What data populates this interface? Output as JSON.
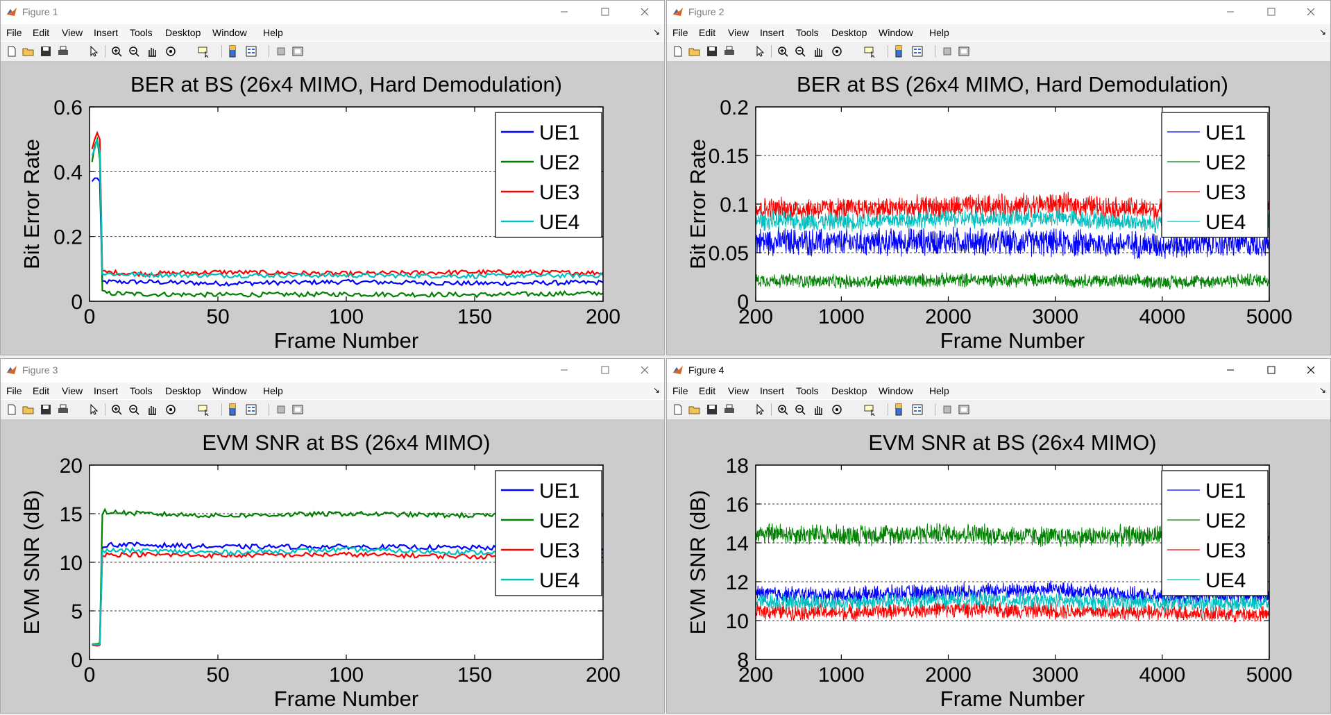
{
  "toolbar_icons": [
    "new-figure-icon",
    "open-file-icon",
    "save-icon",
    "print-icon",
    "pointer-arrow-icon",
    "zoom-in-icon",
    "zoom-out-icon",
    "pan-hand-icon",
    "rotate-3d-icon",
    "data-cursor-icon",
    "colorbar-icon",
    "legend-icon",
    "hide-plot-tools-icon",
    "show-plot-tools-icon"
  ],
  "menus": [
    "File",
    "Edit",
    "View",
    "Insert",
    "Tools",
    "Desktop",
    "Window",
    "Help"
  ],
  "colors": {
    "UE1": "#0000ff",
    "UE2": "#008000",
    "UE3": "#ff0000",
    "UE4": "#00bfbf",
    "figure_bg": "#cccccc"
  },
  "windows": [
    {
      "title": "Figure 1",
      "active": false,
      "chart_data": {
        "type": "line",
        "title": "BER at BS (26x4 MIMO, Hard Demodulation)",
        "xlabel": "Frame Number",
        "ylabel": "Bit Error Rate",
        "xlim": [
          0,
          200
        ],
        "ylim": [
          0,
          0.6
        ],
        "xticks": [
          0,
          50,
          100,
          150,
          200
        ],
        "xtick_labels": [
          "0",
          "50",
          "100",
          "150",
          "200"
        ],
        "yticks": [
          0,
          0.2,
          0.4,
          0.6
        ],
        "ytick_labels": [
          "0",
          "0.2",
          "0.4",
          "0.6"
        ],
        "grid": "horizontal dashed",
        "legend": "top-right",
        "series": [
          {
            "name": "UE1",
            "x": [
              1,
              2,
              3,
              4,
              5,
              6,
              20,
              50,
              100,
              150,
              200
            ],
            "y": [
              0.37,
              0.38,
              0.38,
              0.37,
              0.06,
              0.06,
              0.06,
              0.055,
              0.06,
              0.055,
              0.058
            ]
          },
          {
            "name": "UE2",
            "x": [
              1,
              2,
              3,
              4,
              5,
              6,
              20,
              50,
              100,
              150,
              200
            ],
            "y": [
              0.43,
              0.48,
              0.5,
              0.44,
              0.03,
              0.025,
              0.022,
              0.02,
              0.022,
              0.02,
              0.025
            ]
          },
          {
            "name": "UE3",
            "x": [
              1,
              2,
              3,
              4,
              5,
              6,
              20,
              50,
              100,
              150,
              200
            ],
            "y": [
              0.47,
              0.5,
              0.52,
              0.5,
              0.09,
              0.09,
              0.085,
              0.09,
              0.085,
              0.09,
              0.088
            ]
          },
          {
            "name": "UE4",
            "x": [
              1,
              2,
              3,
              4,
              5,
              6,
              20,
              50,
              100,
              150,
              200
            ],
            "y": [
              0.45,
              0.47,
              0.5,
              0.46,
              0.085,
              0.085,
              0.082,
              0.08,
              0.08,
              0.078,
              0.08
            ]
          }
        ]
      }
    },
    {
      "title": "Figure 2",
      "active": false,
      "chart_data": {
        "type": "line",
        "title": "BER at BS (26x4 MIMO, Hard Demodulation)",
        "xlabel": "Frame Number",
        "ylabel": "Bit Error Rate",
        "xlim": [
          200,
          5000
        ],
        "ylim": [
          0,
          0.2
        ],
        "xticks": [
          200,
          1000,
          2000,
          3000,
          4000,
          5000
        ],
        "xtick_labels": [
          "200",
          "1000",
          "2000",
          "3000",
          "4000",
          "5000"
        ],
        "yticks": [
          0,
          0.05,
          0.1,
          0.15,
          0.2
        ],
        "ytick_labels": [
          "0",
          "0.05",
          "0.1",
          "0.15",
          "0.2"
        ],
        "grid": "horizontal dashed",
        "legend": "top-right",
        "series": [
          {
            "name": "UE1",
            "mean": 0.062,
            "spread": 0.012,
            "x": [
              200,
              1000,
              2000,
              3000,
              4000,
              5000
            ],
            "y": [
              0.062,
              0.06,
              0.062,
              0.06,
              0.058,
              0.06
            ]
          },
          {
            "name": "UE2",
            "mean": 0.022,
            "spread": 0.006,
            "x": [
              200,
              1000,
              2000,
              3000,
              4000,
              5000
            ],
            "y": [
              0.022,
              0.02,
              0.022,
              0.022,
              0.02,
              0.022
            ]
          },
          {
            "name": "UE3",
            "mean": 0.095,
            "spread": 0.01,
            "x": [
              200,
              1000,
              2000,
              3000,
              4000,
              5000
            ],
            "y": [
              0.095,
              0.095,
              0.097,
              0.1,
              0.093,
              0.095
            ]
          },
          {
            "name": "UE4",
            "mean": 0.083,
            "spread": 0.008,
            "x": [
              200,
              1000,
              2000,
              3000,
              4000,
              5000
            ],
            "y": [
              0.083,
              0.082,
              0.085,
              0.086,
              0.08,
              0.082
            ]
          }
        ]
      }
    },
    {
      "title": "Figure 3",
      "active": false,
      "chart_data": {
        "type": "line",
        "title": "EVM SNR at BS (26x4 MIMO)",
        "xlabel": "Frame Number",
        "ylabel": "EVM SNR (dB)",
        "xlim": [
          0,
          200
        ],
        "ylim": [
          0,
          20
        ],
        "xticks": [
          0,
          50,
          100,
          150,
          200
        ],
        "xtick_labels": [
          "0",
          "50",
          "100",
          "150",
          "200"
        ],
        "yticks": [
          0,
          5,
          10,
          15,
          20
        ],
        "ytick_labels": [
          "0",
          "5",
          "10",
          "15",
          "20"
        ],
        "grid": "horizontal dashed",
        "legend": "top-right",
        "series": [
          {
            "name": "UE1",
            "x": [
              1,
              3,
              4,
              5,
              6,
              20,
              50,
              100,
              150,
              200
            ],
            "y": [
              1.5,
              1.5,
              1.6,
              11.5,
              11.8,
              11.8,
              11.6,
              11.6,
              11.5,
              11.4
            ]
          },
          {
            "name": "UE2",
            "x": [
              1,
              3,
              4,
              5,
              6,
              20,
              50,
              100,
              150,
              200
            ],
            "y": [
              1.6,
              1.6,
              1.7,
              14.8,
              15.2,
              15.0,
              14.8,
              15.0,
              14.8,
              14.8
            ]
          },
          {
            "name": "UE3",
            "x": [
              1,
              3,
              4,
              5,
              6,
              20,
              50,
              100,
              150,
              200
            ],
            "y": [
              1.5,
              1.4,
              1.5,
              10.6,
              10.8,
              10.8,
              10.7,
              10.8,
              10.6,
              10.5
            ]
          },
          {
            "name": "UE4",
            "x": [
              1,
              3,
              4,
              5,
              6,
              20,
              50,
              100,
              150,
              200
            ],
            "y": [
              1.6,
              1.5,
              1.6,
              11.0,
              11.2,
              11.2,
              11.0,
              11.3,
              11.0,
              11.0
            ]
          }
        ]
      }
    },
    {
      "title": "Figure 4",
      "active": true,
      "chart_data": {
        "type": "line",
        "title": "EVM SNR at BS (26x4 MIMO)",
        "xlabel": "Frame Number",
        "ylabel": "EVM SNR (dB)",
        "xlim": [
          200,
          5000
        ],
        "ylim": [
          8,
          18
        ],
        "xticks": [
          200,
          1000,
          2000,
          3000,
          4000,
          5000
        ],
        "xtick_labels": [
          "200",
          "1000",
          "2000",
          "3000",
          "4000",
          "5000"
        ],
        "yticks": [
          8,
          10,
          12,
          14,
          16,
          18
        ],
        "ytick_labels": [
          "8",
          "10",
          "12",
          "14",
          "16",
          "18"
        ],
        "grid": "horizontal dashed",
        "legend": "top-right",
        "series": [
          {
            "name": "UE1",
            "mean": 11.4,
            "spread": 0.35,
            "x": [
              200,
              1000,
              2000,
              3000,
              4000,
              5000
            ],
            "y": [
              11.4,
              11.3,
              11.5,
              11.6,
              11.2,
              11.3
            ]
          },
          {
            "name": "UE2",
            "mean": 14.5,
            "spread": 0.45,
            "x": [
              200,
              1000,
              2000,
              3000,
              4000,
              5000
            ],
            "y": [
              14.5,
              14.4,
              14.5,
              14.3,
              14.4,
              14.3
            ]
          },
          {
            "name": "UE3",
            "mean": 10.5,
            "spread": 0.35,
            "x": [
              200,
              1000,
              2000,
              3000,
              4000,
              5000
            ],
            "y": [
              10.5,
              10.4,
              10.6,
              10.5,
              10.4,
              10.3
            ]
          },
          {
            "name": "UE4",
            "mean": 11.0,
            "spread": 0.35,
            "x": [
              200,
              1000,
              2000,
              3000,
              4000,
              5000
            ],
            "y": [
              11.0,
              10.9,
              11.1,
              11.0,
              10.9,
              10.9
            ]
          }
        ]
      }
    }
  ]
}
